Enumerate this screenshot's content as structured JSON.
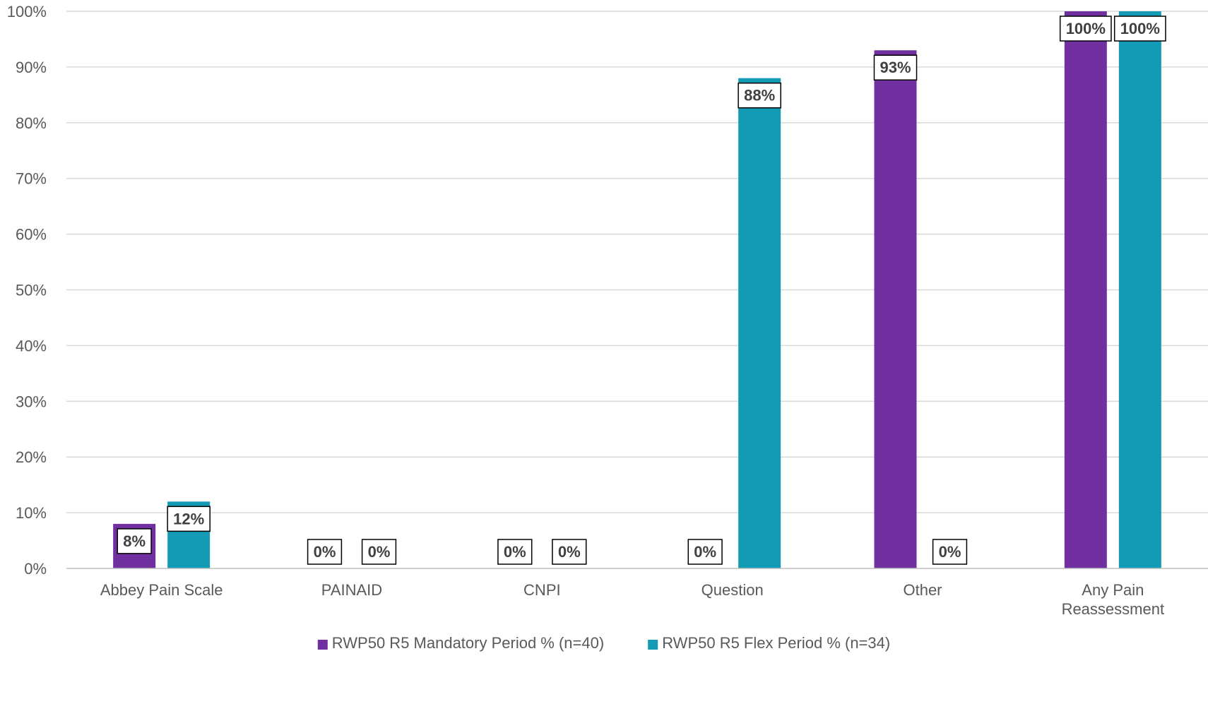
{
  "chart_data": {
    "type": "bar",
    "title": "",
    "xlabel": "",
    "ylabel": "",
    "ylim": [
      0,
      100
    ],
    "y_ticks": [
      "0%",
      "10%",
      "20%",
      "30%",
      "40%",
      "50%",
      "60%",
      "70%",
      "80%",
      "90%",
      "100%"
    ],
    "categories": [
      "Abbey Pain Scale",
      "PAINAID",
      "CNPI",
      "Question",
      "Other",
      "Any Pain Reassessment"
    ],
    "series": [
      {
        "name": "RWP50 R5 Mandatory Period % (n=40)",
        "color": "#7030a0",
        "values": [
          8,
          0,
          0,
          0,
          93,
          100
        ],
        "labels": [
          "8%",
          "0%",
          "0%",
          "0%",
          "93%",
          "100%"
        ]
      },
      {
        "name": "RWP50 R5 Flex Period % (n=34)",
        "color": "#139ab4",
        "values": [
          12,
          0,
          0,
          88,
          0,
          100
        ],
        "labels": [
          "12%",
          "0%",
          "0%",
          "88%",
          "0%",
          "100%"
        ]
      }
    ],
    "grid": true,
    "legend_position": "bottom"
  }
}
